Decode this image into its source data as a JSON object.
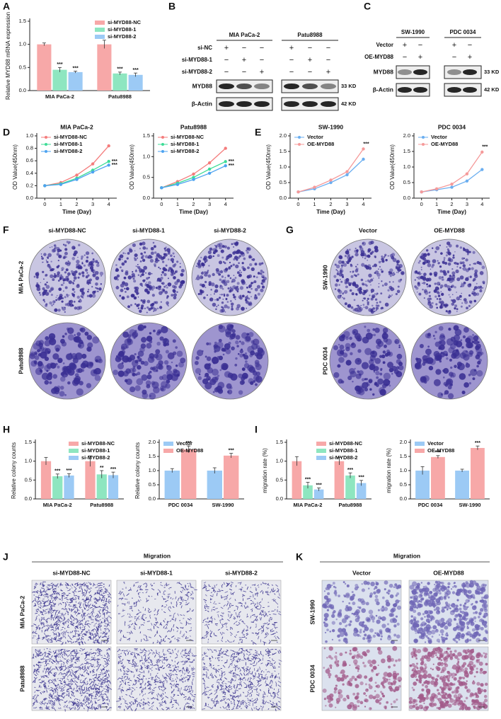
{
  "chart_data": [
    {
      "type": "bar",
      "panel": "A",
      "ylabel": "Relative MYD88 mRNA expression",
      "categories": [
        "MIA PaCa-2",
        "Patu8988"
      ],
      "ylim": [
        0,
        1.5
      ],
      "yticks": [
        {
          "value": 0,
          "label": "0.0"
        },
        0.5,
        {
          "value": 1,
          "label": "1.0"
        },
        1.5
      ],
      "legend": "upper right",
      "series": [
        {
          "name": "si-MYD88-NC",
          "color": "#f7a8a8",
          "values": [
            1.0,
            1.0
          ],
          "errors": [
            0.03,
            0.09
          ]
        },
        {
          "name": "si-MYD88-1",
          "color": "#8ee6c0",
          "values": [
            0.45,
            0.37
          ],
          "errors": [
            0.05,
            0.03
          ],
          "sig": [
            "***",
            "***"
          ]
        },
        {
          "name": "si-MYD88-2",
          "color": "#9ccaf5",
          "values": [
            0.4,
            0.34
          ],
          "errors": [
            0.02,
            0.04
          ],
          "sig": [
            "***",
            "***"
          ]
        }
      ]
    },
    {
      "type": "line",
      "panel": "D",
      "title": "MIA PaCa-2",
      "xlabel": "Time (Day)",
      "ylabel": "OD Value(450nm)",
      "x": [
        0,
        1,
        2,
        3,
        4
      ],
      "xlim": [
        -0.5,
        4.5
      ],
      "xticks": [
        0,
        1,
        2,
        3,
        4
      ],
      "ylim": [
        0,
        1.0
      ],
      "yticks": [
        {
          "value": 0,
          "label": "0.0"
        },
        0.2,
        0.4,
        0.6,
        0.8,
        {
          "value": 1,
          "label": "1.0"
        }
      ],
      "legend": "upper left",
      "series": [
        {
          "name": "si-MYD88-NC",
          "color": "#f47c7c",
          "values": [
            0.2,
            0.25,
            0.37,
            0.55,
            0.84
          ]
        },
        {
          "name": "si-MYD88-1",
          "color": "#3ddc97",
          "values": [
            0.2,
            0.23,
            0.32,
            0.45,
            0.59
          ],
          "end_label": "***"
        },
        {
          "name": "si-MYD88-2",
          "color": "#4da3f0",
          "values": [
            0.2,
            0.22,
            0.3,
            0.42,
            0.53
          ],
          "end_label": "***"
        }
      ]
    },
    {
      "type": "line",
      "title": "Patu8988",
      "xlabel": "Time (Day)",
      "ylabel": "OD Value(450nm)",
      "x": [
        0,
        1,
        2,
        3,
        4
      ],
      "xlim": [
        -0.5,
        4.5
      ],
      "xticks": [
        0,
        1,
        2,
        3,
        4
      ],
      "ylim": [
        0,
        1.5
      ],
      "yticks": [
        {
          "value": 0,
          "label": "0.0"
        },
        0.5,
        {
          "value": 1,
          "label": "1.0"
        },
        1.5
      ],
      "legend": "upper left",
      "series": [
        {
          "name": "si-MYD88-NC",
          "color": "#f47c7c",
          "values": [
            0.25,
            0.4,
            0.58,
            0.85,
            1.2
          ]
        },
        {
          "name": "si-MYD88-1",
          "color": "#3ddc97",
          "values": [
            0.25,
            0.36,
            0.5,
            0.7,
            0.88
          ],
          "end_label": "***"
        },
        {
          "name": "si-MYD88-2",
          "color": "#4da3f0",
          "values": [
            0.25,
            0.33,
            0.45,
            0.6,
            0.78
          ],
          "end_label": "***"
        }
      ]
    },
    {
      "type": "line",
      "panel": "E",
      "title": "SW-1990",
      "xlabel": "Time (Day)",
      "ylabel": "OD Value(450nm)",
      "x": [
        0,
        1,
        2,
        3,
        4
      ],
      "xlim": [
        -0.5,
        4.5
      ],
      "xticks": [
        0,
        1,
        2,
        3,
        4
      ],
      "ylim": [
        0,
        2.0
      ],
      "yticks": [
        {
          "value": 0,
          "label": "0.0"
        },
        0.5,
        {
          "value": 1,
          "label": "1.0"
        },
        1.5,
        {
          "value": 2,
          "label": "2.0"
        }
      ],
      "legend": "upper left",
      "series": [
        {
          "name": "Vector",
          "color": "#6aaef0",
          "values": [
            0.2,
            0.3,
            0.5,
            0.75,
            1.25
          ]
        },
        {
          "name": "OE-MYD88",
          "color": "#f59a9a",
          "values": [
            0.2,
            0.35,
            0.58,
            0.85,
            1.58
          ],
          "end_label": "***"
        }
      ]
    },
    {
      "type": "line",
      "title": "PDC 0034",
      "xlabel": "Time (Day)",
      "ylabel": "OD Value(450nm)",
      "x": [
        0,
        1,
        2,
        3,
        4
      ],
      "xlim": [
        -0.5,
        4.5
      ],
      "xticks": [
        0,
        1,
        2,
        3,
        4
      ],
      "ylim": [
        0,
        2.0
      ],
      "yticks": [
        {
          "value": 0,
          "label": "0.0"
        },
        0.5,
        {
          "value": 1,
          "label": "1.0"
        },
        1.5,
        {
          "value": 2,
          "label": "2.0"
        }
      ],
      "legend": "upper left",
      "series": [
        {
          "name": "Vector",
          "color": "#6aaef0",
          "values": [
            0.2,
            0.27,
            0.35,
            0.55,
            0.92
          ]
        },
        {
          "name": "OE-MYD88",
          "color": "#f59a9a",
          "values": [
            0.2,
            0.3,
            0.45,
            0.78,
            1.48
          ],
          "end_label": "***"
        }
      ]
    },
    {
      "type": "bar",
      "panel": "H",
      "ylabel": "Relative colony counts",
      "categories": [
        "MIA PaCa-2",
        "Patu8988"
      ],
      "ylim": [
        0,
        1.5
      ],
      "yticks": [
        {
          "value": 0,
          "label": "0.0"
        },
        0.5,
        {
          "value": 1,
          "label": "1.0"
        },
        1.5
      ],
      "legend": "upper right",
      "series": [
        {
          "name": "si-MYD88-NC",
          "color": "#f7a8a8",
          "values": [
            1.0,
            1.0
          ],
          "errors": [
            0.1,
            0.14
          ]
        },
        {
          "name": "si-MYD88-1",
          "color": "#8ee6c0",
          "values": [
            0.6,
            0.65
          ],
          "errors": [
            0.06,
            0.1
          ],
          "sig": [
            "***",
            "**"
          ]
        },
        {
          "name": "si-MYD88-2",
          "color": "#9ccaf5",
          "values": [
            0.62,
            0.63
          ],
          "errors": [
            0.05,
            0.08
          ],
          "sig": [
            "***",
            "***"
          ]
        }
      ]
    },
    {
      "type": "bar",
      "ylabel": "Relative colony counts",
      "categories": [
        "PDC 0034",
        "SW-1990"
      ],
      "ylim": [
        0,
        2.0
      ],
      "yticks": [
        {
          "value": 0,
          "label": "0.0"
        },
        0.5,
        {
          "value": 1,
          "label": "1.0"
        },
        1.5,
        {
          "value": 2,
          "label": "2.0"
        }
      ],
      "legend": "upper left",
      "series": [
        {
          "name": "Vector",
          "color": "#9ccaf5",
          "values": [
            1.0,
            1.0
          ],
          "errors": [
            0.07,
            0.1
          ]
        },
        {
          "name": "OE-MYD88",
          "color": "#f7a8a8",
          "values": [
            1.75,
            1.53
          ],
          "errors": [
            0.12,
            0.08
          ],
          "sig": [
            "***",
            "***"
          ]
        }
      ]
    },
    {
      "type": "bar",
      "panel": "I",
      "ylabel": "migration rate (%)",
      "categories": [
        "MIA PaCa-2",
        "Patu8988"
      ],
      "ylim": [
        0,
        1.5
      ],
      "yticks": [
        {
          "value": 0,
          "label": "0.0"
        },
        0.5,
        {
          "value": 1,
          "label": "1.0"
        },
        1.5
      ],
      "legend": "upper right",
      "series": [
        {
          "name": "si-MYD88-NC",
          "color": "#f7a8a8",
          "values": [
            1.0,
            1.0
          ],
          "errors": [
            0.12,
            0.1
          ]
        },
        {
          "name": "si-MYD88-1",
          "color": "#8ee6c0",
          "values": [
            0.36,
            0.62
          ],
          "errors": [
            0.08,
            0.07
          ],
          "sig": [
            "***",
            "***"
          ]
        },
        {
          "name": "si-MYD88-2",
          "color": "#9ccaf5",
          "values": [
            0.25,
            0.42
          ],
          "errors": [
            0.04,
            0.07
          ],
          "sig": [
            "***",
            "***"
          ]
        }
      ]
    },
    {
      "type": "bar",
      "ylabel": "migration rate (%)",
      "categories": [
        "PDC 0034",
        "SW-1990"
      ],
      "ylim": [
        0,
        2.0
      ],
      "yticks": [
        {
          "value": 0,
          "label": "0.0"
        },
        0.5,
        {
          "value": 1,
          "label": "1.0"
        },
        1.5,
        {
          "value": 2,
          "label": "2.0"
        }
      ],
      "legend": "upper left",
      "series": [
        {
          "name": "Vector",
          "color": "#9ccaf5",
          "values": [
            1.0,
            1.0
          ],
          "errors": [
            0.14,
            0.05
          ]
        },
        {
          "name": "OE-MYD88",
          "color": "#f7a8a8",
          "values": [
            1.48,
            1.8
          ],
          "errors": [
            0.05,
            0.07
          ],
          "sig": [
            "***",
            "***"
          ]
        }
      ]
    }
  ],
  "blots": [
    {
      "panel": "B",
      "groups": [
        "MIA PaCa-2",
        "Patu8988"
      ],
      "conditions": [
        {
          "label": "si-NC",
          "marks": [
            "+",
            "−",
            "−",
            "+",
            "−",
            "−"
          ]
        },
        {
          "label": "si-MYD88-1",
          "marks": [
            "−",
            "+",
            "−",
            "−",
            "+",
            "−"
          ]
        },
        {
          "label": "si-MYD88-2",
          "marks": [
            "−",
            "−",
            "+",
            "−",
            "−",
            "+"
          ]
        }
      ],
      "rows": [
        {
          "label": "MYD88",
          "size": "33 KD"
        },
        {
          "label": "β-Actin",
          "size": "42 KD"
        }
      ]
    },
    {
      "panel": "C",
      "groups": [
        "SW-1990",
        "PDC 0034"
      ],
      "conditions": [
        {
          "label": "Vector",
          "marks": [
            "+",
            "−",
            "+",
            "−"
          ]
        },
        {
          "label": "OE-MYD88",
          "marks": [
            "−",
            "+",
            "−",
            "+"
          ]
        }
      ],
      "rows": [
        {
          "label": "MYD88",
          "size": "33 KD"
        },
        {
          "label": "β-Actin",
          "size": "42 KD"
        }
      ]
    }
  ],
  "image_panels": [
    {
      "panel": "F",
      "columns": [
        "si-MYD88-NC",
        "si-MYD88-1",
        "si-MYD88-2"
      ],
      "rows": [
        "MIA PaCa-2",
        "Patu8988"
      ]
    },
    {
      "panel": "G",
      "columns": [
        "Vector",
        "OE-MYD88"
      ],
      "rows": [
        "SW-1990",
        "PDC 0034"
      ]
    },
    {
      "panel": "J",
      "title": "Migration",
      "columns": [
        "si-MYD88-NC",
        "si-MYD88-1",
        "si-MYD88-2"
      ],
      "rows": [
        "MIA PaCa-2",
        "Patu8988"
      ]
    },
    {
      "panel": "K",
      "title": "Migration",
      "columns": [
        "Vector",
        "OE-MYD88"
      ],
      "rows": [
        "SW-1990",
        "PDC 0034"
      ]
    }
  ]
}
